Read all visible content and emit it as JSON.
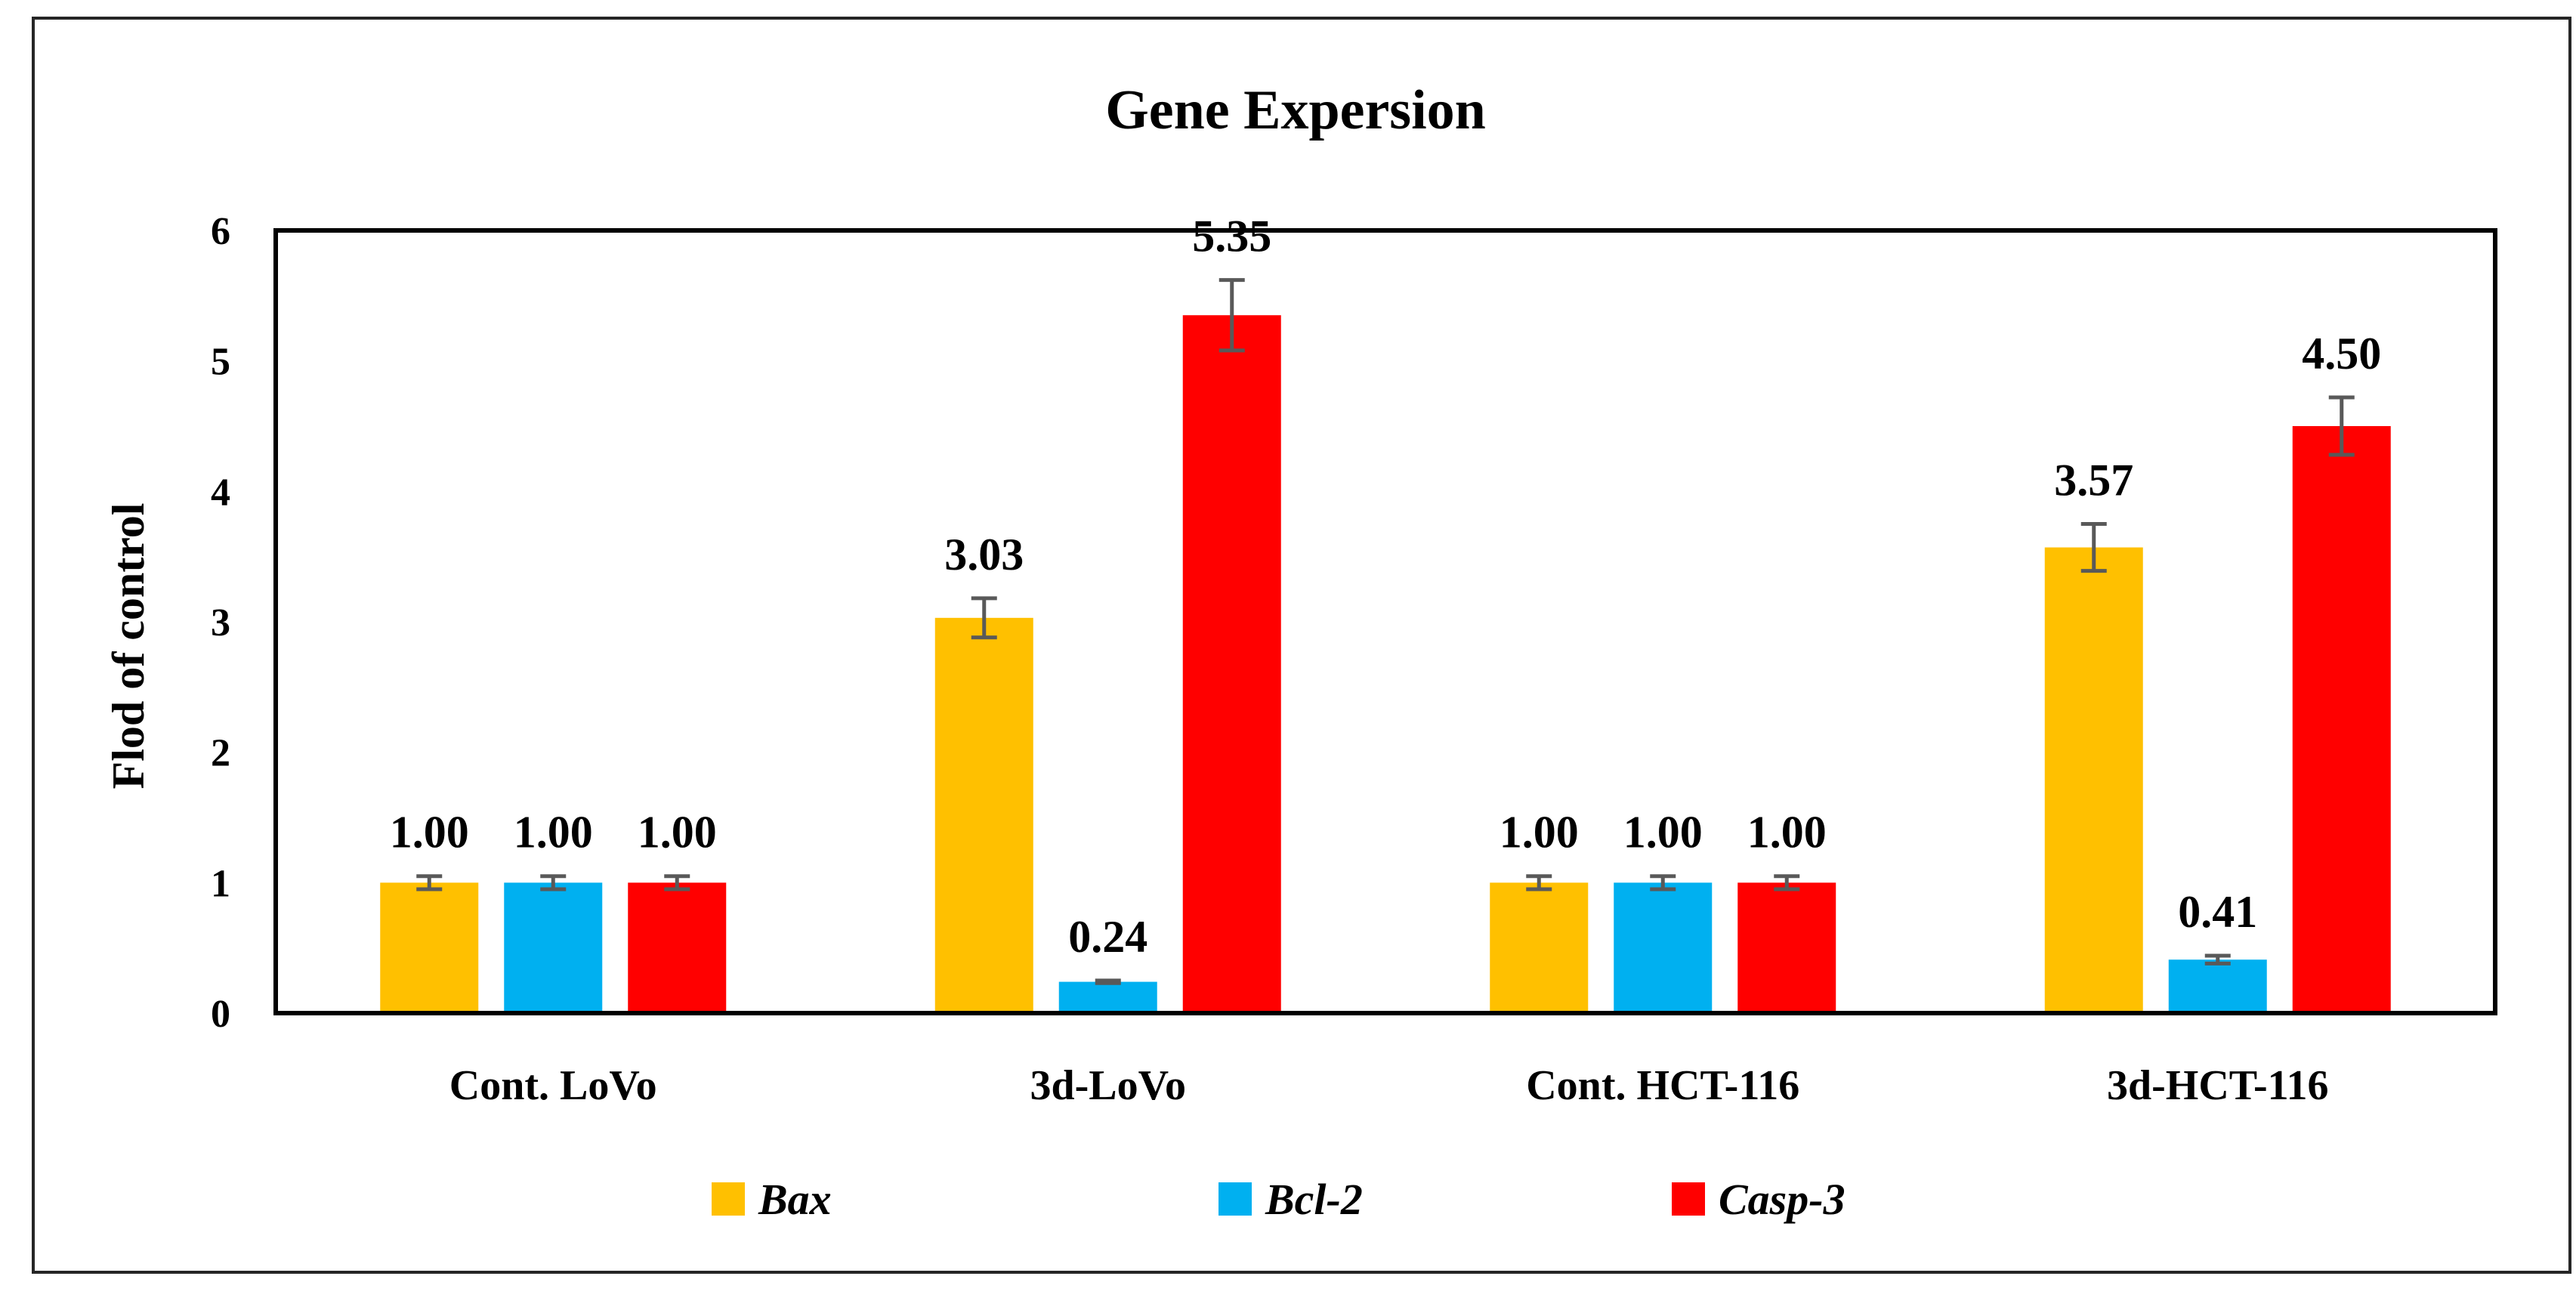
{
  "chart_data": {
    "type": "bar",
    "title": "Gene Expersion",
    "xlabel": "",
    "ylabel": "Flod of control",
    "ylim": [
      0,
      6
    ],
    "yticks": [
      0,
      1,
      2,
      3,
      4,
      5,
      6
    ],
    "grid": false,
    "legend_position": "bottom",
    "categories": [
      "Cont. LoVo",
      "3d-LoVo",
      "Cont. HCT-116",
      "3d-HCT-116"
    ],
    "series": [
      {
        "name": "Bax",
        "color": "#FFC000",
        "values": [
          1.0,
          3.03,
          1.0,
          3.57
        ],
        "labels": [
          "1.00",
          "3.03",
          "1.00",
          "3.57"
        ],
        "errors": [
          0.05,
          0.15,
          0.05,
          0.18
        ]
      },
      {
        "name": "Bcl-2",
        "color": "#00B0F0",
        "values": [
          1.0,
          0.24,
          1.0,
          0.41
        ],
        "labels": [
          "1.00",
          "0.24",
          "1.00",
          "0.41"
        ],
        "errors": [
          0.05,
          0.01,
          0.05,
          0.03
        ]
      },
      {
        "name": "Casp-3",
        "color": "#FF0000",
        "values": [
          1.0,
          5.35,
          1.0,
          4.5
        ],
        "labels": [
          "1.00",
          "5.35",
          "1.00",
          "4.50"
        ],
        "errors": [
          0.05,
          0.27,
          0.05,
          0.22
        ]
      }
    ]
  }
}
